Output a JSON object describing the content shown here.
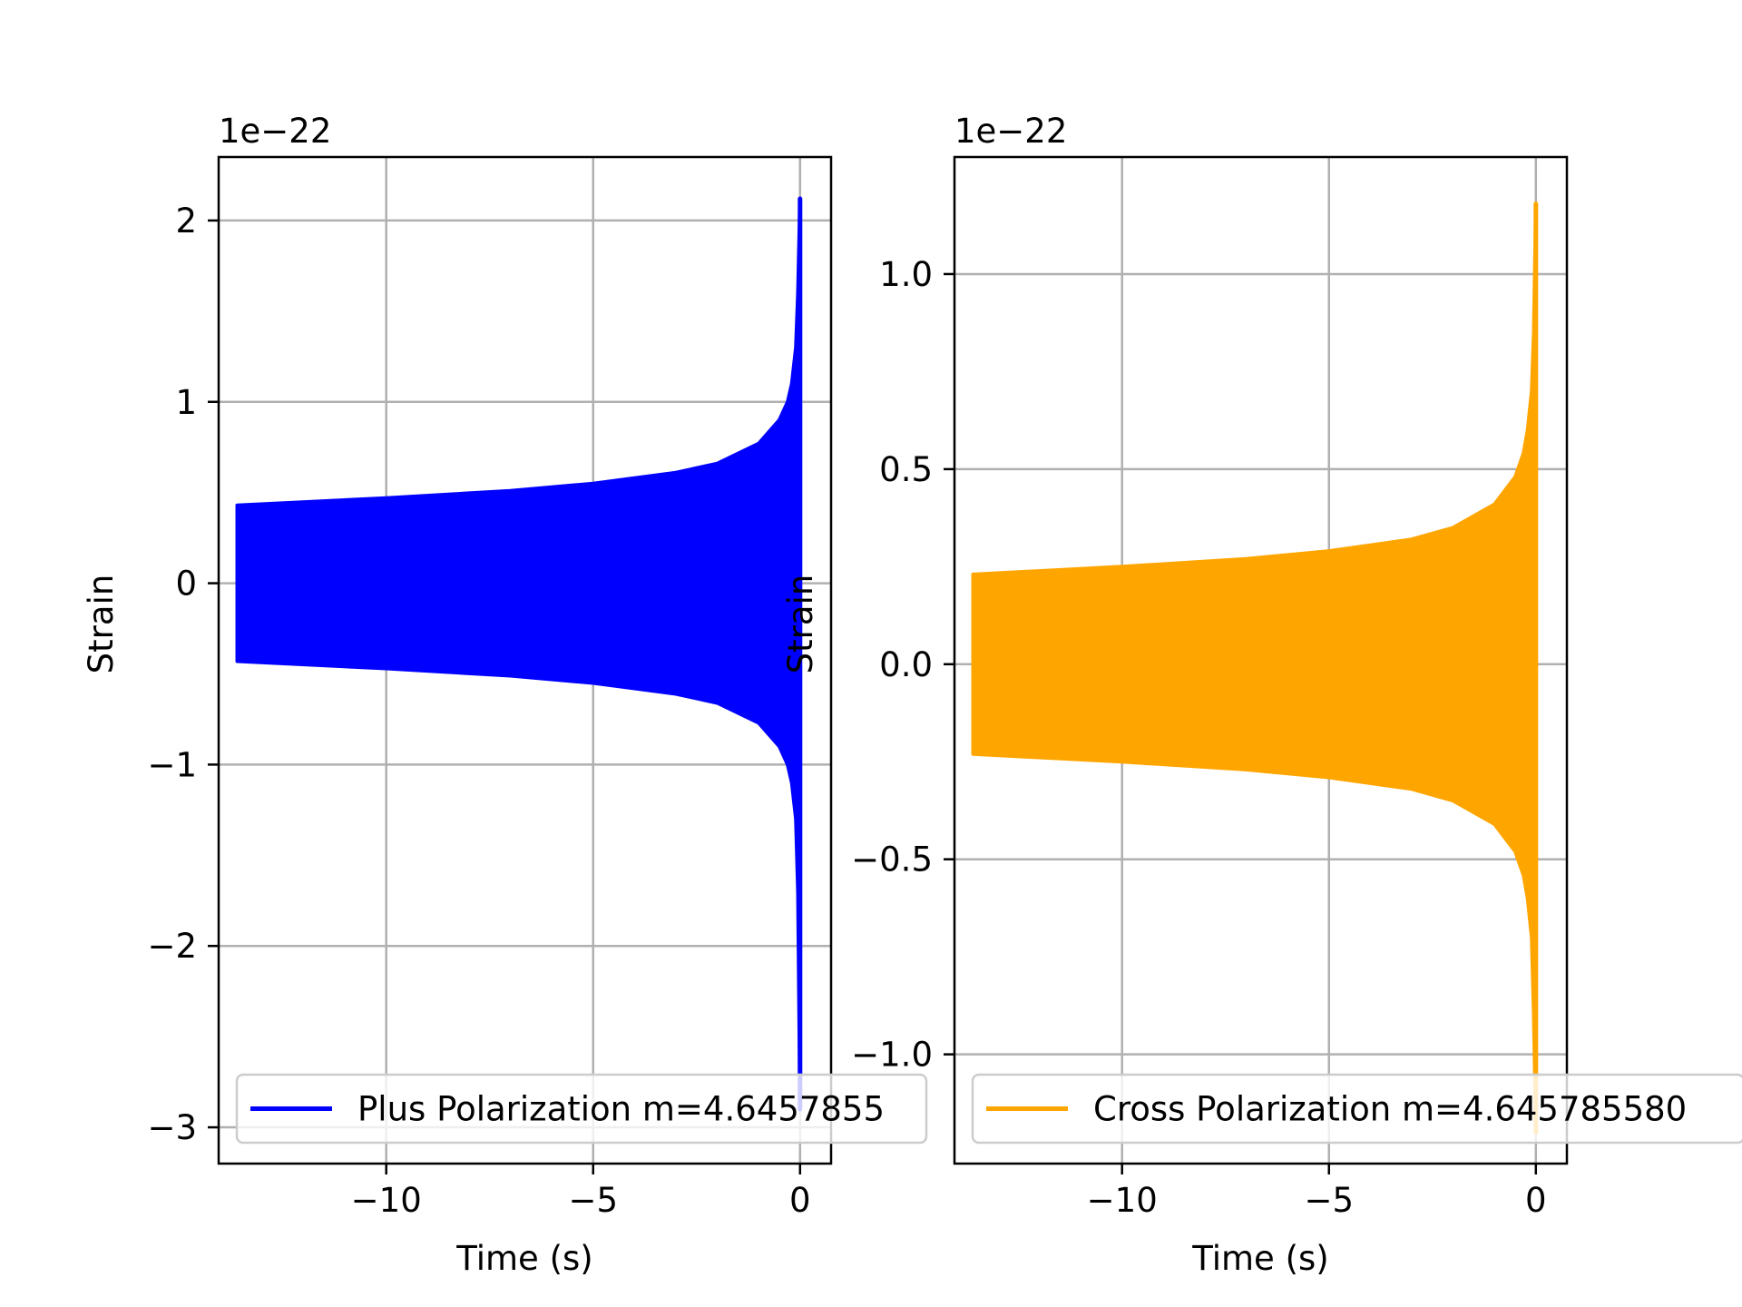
{
  "chart_data": [
    {
      "type": "line",
      "xlabel": "Time (s)",
      "ylabel": "Strain",
      "offset_text": "1e−22",
      "xlim": [
        -14.05,
        0.75
      ],
      "ylim": [
        -3.2,
        2.35
      ],
      "xticks": [
        -10,
        -5,
        0
      ],
      "xtick_labels": [
        "−10",
        "−5",
        "0"
      ],
      "yticks": [
        -3,
        -2,
        -1,
        0,
        1,
        2
      ],
      "ytick_labels": [
        "−3",
        "−2",
        "−1",
        "0",
        "1",
        "2"
      ],
      "grid": true,
      "legend_position": "lower-right",
      "series": [
        {
          "name": "Plus Polarization m=4.6457855",
          "color": "#0000ff",
          "envelope": {
            "t": [
              -13.6,
              -10,
              -7,
              -5,
              -3,
              -2,
              -1,
              -0.5,
              -0.3,
              -0.2,
              -0.1,
              -0.05,
              0.0
            ],
            "upper": [
              0.43,
              0.47,
              0.51,
              0.55,
              0.61,
              0.66,
              0.77,
              0.9,
              1.0,
              1.1,
              1.3,
              1.6,
              2.12
            ],
            "lower": [
              -0.43,
              -0.47,
              -0.51,
              -0.55,
              -0.61,
              -0.66,
              -0.77,
              -0.9,
              -1.0,
              -1.1,
              -1.3,
              -1.7,
              -2.9
            ]
          }
        }
      ]
    },
    {
      "type": "line",
      "xlabel": "Time (s)",
      "ylabel": "Strain",
      "offset_text": "1e−22",
      "xlim": [
        -14.05,
        0.75
      ],
      "ylim": [
        -1.28,
        1.3
      ],
      "xticks": [
        -10,
        -5,
        0
      ],
      "xtick_labels": [
        "−10",
        "−5",
        "0"
      ],
      "yticks": [
        -1.0,
        -0.5,
        0.0,
        0.5,
        1.0
      ],
      "ytick_labels": [
        "−1.0",
        "−0.5",
        "0.0",
        "0.5",
        "1.0"
      ],
      "grid": true,
      "legend_position": "lower-right",
      "series": [
        {
          "name": "Cross Polarization m=4.645785580",
          "color": "#ffa500",
          "envelope": {
            "t": [
              -13.6,
              -10,
              -7,
              -5,
              -3,
              -2,
              -1,
              -0.5,
              -0.3,
              -0.2,
              -0.1,
              -0.05,
              0.0
            ],
            "upper": [
              0.23,
              0.25,
              0.27,
              0.29,
              0.32,
              0.35,
              0.41,
              0.48,
              0.54,
              0.6,
              0.7,
              0.85,
              1.18
            ],
            "lower": [
              -0.23,
              -0.25,
              -0.27,
              -0.29,
              -0.32,
              -0.35,
              -0.41,
              -0.48,
              -0.54,
              -0.6,
              -0.7,
              -0.9,
              -1.2
            ]
          }
        }
      ]
    }
  ]
}
